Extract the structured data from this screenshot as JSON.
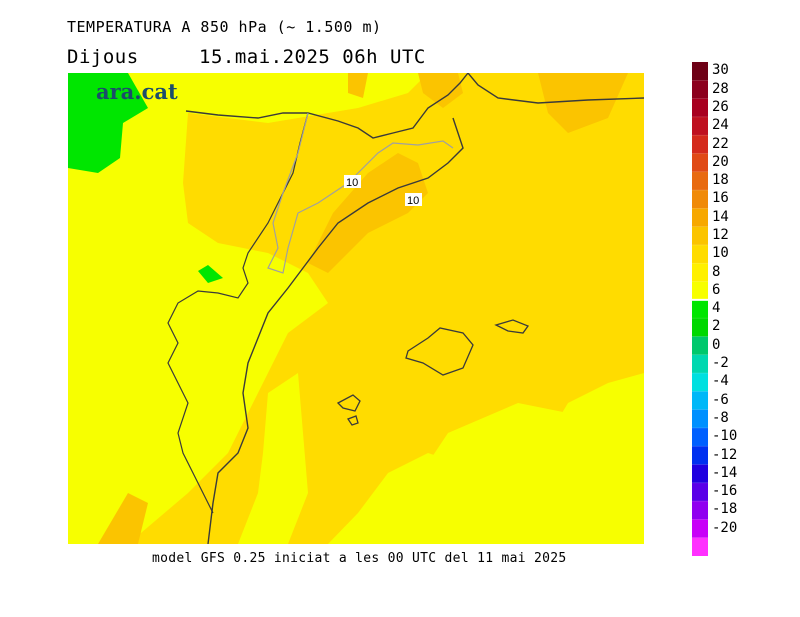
{
  "header": {
    "title": "TEMPERATURA A 850 hPa (~ 1.500 m)",
    "day": "Dijous",
    "datetime": "15.mai.2025 06h UTC"
  },
  "map": {
    "logo_text": "ara.cat",
    "contour_labels": [
      "10",
      "10"
    ]
  },
  "footer": {
    "text": "model GFS 0.25 iniciat a les 00 UTC del 11 mai 2025"
  },
  "legend": {
    "ticks": [
      "30",
      "28",
      "26",
      "24",
      "22",
      "20",
      "18",
      "16",
      "14",
      "12",
      "10",
      "8",
      "6",
      "4",
      "2",
      "0",
      "-2",
      "-4",
      "-6",
      "-8",
      "-10",
      "-12",
      "-14",
      "-16",
      "-18",
      "-20"
    ],
    "colors": [
      "#6e0016",
      "#8c001e",
      "#a80020",
      "#bf1020",
      "#d42a1c",
      "#e04a16",
      "#e86a10",
      "#f08a08",
      "#f7a800",
      "#fbc400",
      "#ffdc00",
      "#fff000",
      "#f7ff00",
      "#00e600",
      "#00d800",
      "#00c86c",
      "#00d8b0",
      "#00e0e0",
      "#00b8f8",
      "#0090ff",
      "#0060ff",
      "#0030f0",
      "#2000e0",
      "#5a00e8",
      "#9000f0",
      "#c800f8",
      "#ff30ff"
    ],
    "neutral_tick": "6"
  }
}
